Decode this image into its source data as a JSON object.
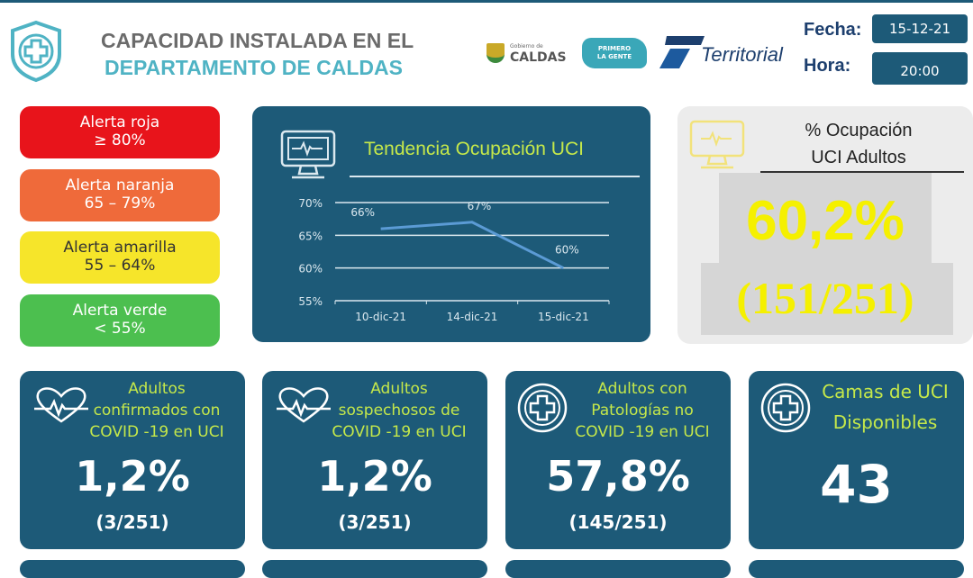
{
  "header": {
    "title_line1": "CAPACIDAD INSTALADA EN EL",
    "title_line2": "DEPARTAMENTO DE CALDAS",
    "logos": {
      "caldas_small": "Gobierno de",
      "caldas": "CALDAS",
      "primero": "PRIMERO",
      "la_gente": "LA GENTE",
      "territorial": "Territorial"
    },
    "fecha_label": "Fecha:",
    "fecha": "15-12-21",
    "hora_label": "Hora:",
    "hora": "20:00"
  },
  "alerts": [
    {
      "label": "Alerta roja",
      "range": "≥ 80%",
      "color": "#e8141b"
    },
    {
      "label": "Alerta naranja",
      "range": "65 – 79%",
      "color": "#ef6a3a"
    },
    {
      "label": "Alerta amarilla",
      "range": "55 – 64%",
      "color": "#f6e52a"
    },
    {
      "label": "Alerta verde",
      "range": "< 55%",
      "color": "#4cbf4f"
    }
  ],
  "trend": {
    "title": "Tendencia Ocupación UCI"
  },
  "chart_data": {
    "type": "line",
    "title": "Tendencia Ocupación UCI",
    "categories": [
      "10-dic-21",
      "14-dic-21",
      "15-dic-21"
    ],
    "values": [
      66,
      67,
      60
    ],
    "data_labels": [
      "66%",
      "67%",
      "60%"
    ],
    "yticks": [
      "55%",
      "60%",
      "65%",
      "70%"
    ],
    "ylim": [
      55,
      70
    ],
    "grid": true
  },
  "occupancy": {
    "title_line1": "% Ocupación",
    "title_line2": "UCI Adultos",
    "percent": "60,2%",
    "ratio": "(151/251)"
  },
  "stats": [
    {
      "title": [
        "Adultos",
        "confirmados con",
        "COVID -19 en UCI"
      ],
      "value": "1,2%",
      "ratio": "(3/251)",
      "icon": "heart-pulse-icon"
    },
    {
      "title": [
        "Adultos",
        "sospechosos de",
        "COVID -19 en UCI"
      ],
      "value": "1,2%",
      "ratio": "(3/251)",
      "icon": "heart-pulse-icon"
    },
    {
      "title": [
        "Adultos con",
        "Patologías no",
        "COVID -19 en UCI"
      ],
      "value": "57,8%",
      "ratio": "(145/251)",
      "icon": "medical-cross-icon"
    },
    {
      "title": [
        "Camas de UCI",
        "Disponibles"
      ],
      "value": "43",
      "icon": "medical-cross-icon"
    }
  ]
}
